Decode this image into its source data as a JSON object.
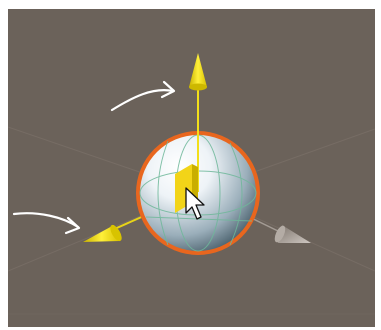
{
  "scene": {
    "background": "#6b625a",
    "grid_color": "#7a7068",
    "colors": {
      "y_axis": "#f2df1a",
      "z_axis": "#e8d418",
      "x_axis_disabled": "#a39b94",
      "selection_outline": "#e8661e",
      "move_plane_handle": "#f2d418",
      "annotation": "#ffffff"
    },
    "icons": {
      "y_axis_cone": "yellow-cone",
      "z_axis_cone": "yellow-cone",
      "x_axis_cone": "grey-cone",
      "move_plane_handle": "square",
      "cursor": "arrow-pointer",
      "annotation_arrows": "curved-arrow"
    }
  }
}
